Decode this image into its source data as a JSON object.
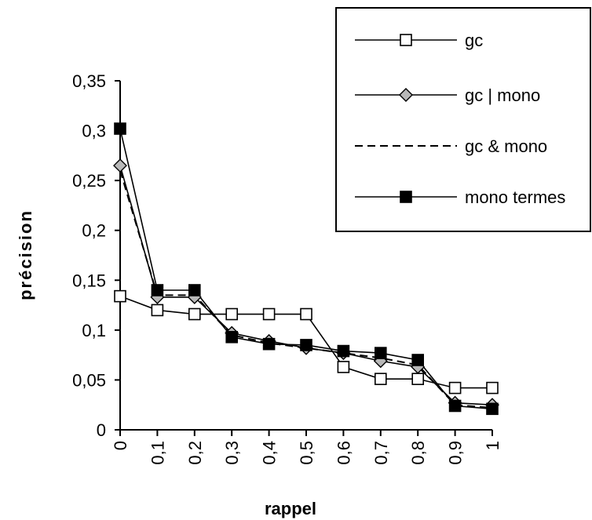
{
  "chart_data": {
    "type": "line",
    "title": "",
    "xlabel": "rappel",
    "ylabel": "précision",
    "x": [
      0,
      0.1,
      0.2,
      0.3,
      0.4,
      0.5,
      0.6,
      0.7,
      0.8,
      0.9,
      1
    ],
    "x_tick_labels": [
      "0",
      "0,1",
      "0,2",
      "0,3",
      "0,4",
      "0,5",
      "0,6",
      "0,7",
      "0,8",
      "0,9",
      "1"
    ],
    "ylim": [
      0,
      0.35
    ],
    "y_ticks": [
      0,
      0.05,
      0.1,
      0.15,
      0.2,
      0.25,
      0.3,
      0.35
    ],
    "y_tick_labels": [
      "0",
      "0,05",
      "0,1",
      "0,15",
      "0,2",
      "0,25",
      "0,3",
      "0,35"
    ],
    "grid": false,
    "legend_position": "top-right",
    "series": [
      {
        "name": "gc",
        "marker": "square-open",
        "line": "solid",
        "values": [
          0.134,
          0.12,
          0.116,
          0.116,
          0.116,
          0.116,
          0.063,
          0.051,
          0.051,
          0.042,
          0.042
        ]
      },
      {
        "name": "gc | mono",
        "marker": "diamond-gray",
        "line": "solid",
        "values": [
          0.265,
          0.133,
          0.133,
          0.097,
          0.089,
          0.082,
          0.077,
          0.069,
          0.063,
          0.027,
          0.025
        ]
      },
      {
        "name": "gc & mono",
        "marker": "none",
        "line": "dashed",
        "values": [
          0.26,
          0.135,
          0.135,
          0.095,
          0.087,
          0.082,
          0.077,
          0.072,
          0.065,
          0.025,
          0.022
        ]
      },
      {
        "name": "mono termes",
        "marker": "square-filled",
        "line": "solid",
        "values": [
          0.302,
          0.14,
          0.14,
          0.093,
          0.086,
          0.085,
          0.079,
          0.077,
          0.07,
          0.024,
          0.021
        ]
      }
    ]
  }
}
